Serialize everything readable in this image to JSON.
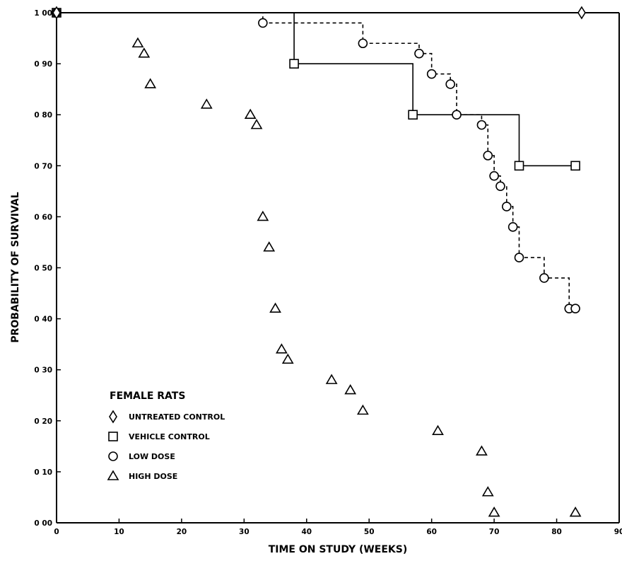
{
  "chart_data": {
    "type": "line",
    "subtype": "kaplan-meier survival step plot",
    "xlabel": "TIME ON STUDY (WEEKS)",
    "ylabel": "PROBABILITY OF SURVIVAL",
    "xlim": [
      0,
      90
    ],
    "ylim": [
      0,
      1.0
    ],
    "x_ticks": [
      0,
      10,
      20,
      30,
      40,
      50,
      60,
      70,
      80,
      90
    ],
    "x_tick_labels": [
      "0",
      "10",
      "20",
      "30",
      "40",
      "50",
      "60",
      "70",
      "80",
      "90"
    ],
    "y_ticks": [
      0,
      0.1,
      0.2,
      0.3,
      0.4,
      0.5,
      0.6,
      0.7,
      0.8,
      0.9,
      1.0
    ],
    "y_tick_labels": [
      "0 00",
      "0 10",
      "0 20",
      "0 30",
      "0 40",
      "0 50",
      "0 60",
      "0 70",
      "0 80",
      "0 90",
      "1 00"
    ],
    "grid": false,
    "legend": {
      "title": "FEMALE RATS",
      "placement": "lower-left"
    },
    "series": [
      {
        "name": "UNTREATED CONTROL",
        "marker": "diamond",
        "line": "solid",
        "points": [
          [
            0,
            1.0
          ],
          [
            84,
            1.0
          ]
        ]
      },
      {
        "name": "VEHICLE CONTROL",
        "marker": "square",
        "line": "solid",
        "points": [
          [
            0,
            1.0
          ],
          [
            38,
            0.9
          ],
          [
            57,
            0.8
          ],
          [
            74,
            0.7
          ],
          [
            83,
            0.7
          ]
        ]
      },
      {
        "name": "LOW DOSE",
        "marker": "circle",
        "line": "dashed",
        "points": [
          [
            0,
            1.0
          ],
          [
            33,
            0.98
          ],
          [
            49,
            0.94
          ],
          [
            58,
            0.92
          ],
          [
            60,
            0.88
          ],
          [
            63,
            0.86
          ],
          [
            64,
            0.8
          ],
          [
            68,
            0.78
          ],
          [
            69,
            0.72
          ],
          [
            70,
            0.68
          ],
          [
            71,
            0.66
          ],
          [
            72,
            0.62
          ],
          [
            73,
            0.58
          ],
          [
            74,
            0.52
          ],
          [
            78,
            0.48
          ],
          [
            82,
            0.42
          ],
          [
            83,
            0.42
          ]
        ]
      },
      {
        "name": "HIGH DOSE",
        "marker": "triangle",
        "line": "none",
        "points": [
          [
            13,
            0.94
          ],
          [
            14,
            0.92
          ],
          [
            15,
            0.86
          ],
          [
            24,
            0.82
          ],
          [
            31,
            0.8
          ],
          [
            32,
            0.78
          ],
          [
            33,
            0.6
          ],
          [
            34,
            0.54
          ],
          [
            35,
            0.42
          ],
          [
            36,
            0.34
          ],
          [
            37,
            0.32
          ],
          [
            44,
            0.28
          ],
          [
            47,
            0.26
          ],
          [
            49,
            0.22
          ],
          [
            61,
            0.18
          ],
          [
            68,
            0.14
          ],
          [
            69,
            0.06
          ],
          [
            70,
            0.02
          ],
          [
            83,
            0.02
          ]
        ]
      }
    ]
  }
}
